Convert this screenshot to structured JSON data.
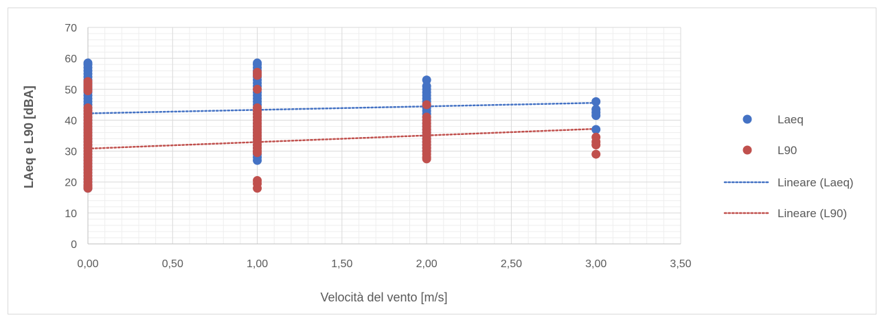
{
  "chart_data": {
    "type": "scatter",
    "title": "",
    "xlabel": "Velocità del vento [m/s]",
    "ylabel": "LAeq e L90 [dBA]",
    "xlim": [
      0,
      3.5
    ],
    "ylim": [
      0,
      70
    ],
    "x_ticks": [
      0,
      0.5,
      1.0,
      1.5,
      2.0,
      2.5,
      3.0,
      3.5
    ],
    "x_tick_labels": [
      "0,00",
      "0,50",
      "1,00",
      "1,50",
      "2,00",
      "2,50",
      "3,00",
      "3,50"
    ],
    "y_ticks": [
      0,
      10,
      20,
      30,
      40,
      50,
      60,
      70
    ],
    "y_tick_labels": [
      "0",
      "10",
      "20",
      "30",
      "40",
      "50",
      "60",
      "70"
    ],
    "grid": true,
    "minor_grid": true,
    "legend": "right",
    "series": [
      {
        "name": "Laeq",
        "kind": "scatter",
        "color": "#4472c4",
        "points": [
          [
            0,
            58.5
          ],
          [
            0,
            58
          ],
          [
            0,
            57
          ],
          [
            0,
            56
          ],
          [
            0,
            55
          ],
          [
            0,
            54
          ],
          [
            0,
            53
          ],
          [
            0,
            52
          ],
          [
            0,
            51
          ],
          [
            0,
            50
          ],
          [
            0,
            49
          ],
          [
            0,
            48
          ],
          [
            0,
            47
          ],
          [
            0,
            46
          ],
          [
            0,
            45
          ],
          [
            0,
            44
          ],
          [
            0,
            43
          ],
          [
            0,
            42
          ],
          [
            0,
            41
          ],
          [
            0,
            40
          ],
          [
            0,
            39
          ],
          [
            0,
            38
          ],
          [
            0,
            37
          ],
          [
            0,
            36
          ],
          [
            0,
            35
          ],
          [
            0,
            34
          ],
          [
            0,
            33
          ],
          [
            0,
            32
          ],
          [
            0,
            31
          ],
          [
            0,
            30
          ],
          [
            0,
            29
          ],
          [
            0,
            28
          ],
          [
            0,
            27
          ],
          [
            0,
            26
          ],
          [
            0,
            25
          ],
          [
            0,
            24
          ],
          [
            0,
            23
          ],
          [
            0,
            22
          ],
          [
            0,
            21
          ],
          [
            0,
            20
          ],
          [
            0,
            19
          ],
          [
            0,
            18
          ],
          [
            1,
            58.5
          ],
          [
            1,
            58
          ],
          [
            1,
            57
          ],
          [
            1,
            56
          ],
          [
            1,
            55
          ],
          [
            1,
            54
          ],
          [
            1,
            53
          ],
          [
            1,
            52
          ],
          [
            1,
            51
          ],
          [
            1,
            50
          ],
          [
            1,
            49
          ],
          [
            1,
            48
          ],
          [
            1,
            47
          ],
          [
            1,
            46
          ],
          [
            1,
            45
          ],
          [
            1,
            44
          ],
          [
            1,
            43
          ],
          [
            1,
            42
          ],
          [
            1,
            41
          ],
          [
            1,
            40
          ],
          [
            1,
            39
          ],
          [
            1,
            38
          ],
          [
            1,
            37
          ],
          [
            1,
            36
          ],
          [
            1,
            35
          ],
          [
            1,
            34
          ],
          [
            1,
            33
          ],
          [
            1,
            32
          ],
          [
            1,
            31
          ],
          [
            1,
            30
          ],
          [
            1,
            29
          ],
          [
            1,
            28
          ],
          [
            1,
            27
          ],
          [
            2,
            53
          ],
          [
            2,
            51
          ],
          [
            2,
            50
          ],
          [
            2,
            49
          ],
          [
            2,
            48
          ],
          [
            2,
            47
          ],
          [
            2,
            46
          ],
          [
            2,
            45
          ],
          [
            2,
            44
          ],
          [
            2,
            43
          ],
          [
            2,
            42
          ],
          [
            2,
            41
          ],
          [
            2,
            40
          ],
          [
            2,
            39
          ],
          [
            2,
            38
          ],
          [
            2,
            37
          ],
          [
            2,
            36
          ],
          [
            2,
            35
          ],
          [
            2,
            34
          ],
          [
            2,
            33
          ],
          [
            2,
            32
          ],
          [
            2,
            31
          ],
          [
            2,
            30
          ],
          [
            3,
            46
          ],
          [
            3,
            43.5
          ],
          [
            3,
            42.5
          ],
          [
            3,
            41.5
          ],
          [
            3,
            37
          ]
        ]
      },
      {
        "name": "L90",
        "kind": "scatter",
        "color": "#c0504d",
        "points": [
          [
            0,
            52.5
          ],
          [
            0,
            51.5
          ],
          [
            0,
            50.5
          ],
          [
            0,
            49.5
          ],
          [
            0,
            44
          ],
          [
            0,
            43
          ],
          [
            0,
            42
          ],
          [
            0,
            41
          ],
          [
            0,
            40
          ],
          [
            0,
            39
          ],
          [
            0,
            38
          ],
          [
            0,
            37
          ],
          [
            0,
            36
          ],
          [
            0,
            35
          ],
          [
            0,
            34
          ],
          [
            0,
            33
          ],
          [
            0,
            32
          ],
          [
            0,
            31
          ],
          [
            0,
            30
          ],
          [
            0,
            29
          ],
          [
            0,
            28
          ],
          [
            0,
            27
          ],
          [
            0,
            26
          ],
          [
            0,
            25
          ],
          [
            0,
            24
          ],
          [
            0,
            23
          ],
          [
            0,
            22
          ],
          [
            0,
            21
          ],
          [
            0,
            20
          ],
          [
            0,
            19
          ],
          [
            0,
            18.5
          ],
          [
            0,
            18
          ],
          [
            1,
            55.5
          ],
          [
            1,
            54.5
          ],
          [
            1,
            50
          ],
          [
            1,
            44
          ],
          [
            1,
            43
          ],
          [
            1,
            42
          ],
          [
            1,
            41
          ],
          [
            1,
            40
          ],
          [
            1,
            39
          ],
          [
            1,
            38
          ],
          [
            1,
            37
          ],
          [
            1,
            36
          ],
          [
            1,
            35
          ],
          [
            1,
            34
          ],
          [
            1,
            33
          ],
          [
            1,
            32
          ],
          [
            1,
            31
          ],
          [
            1,
            30
          ],
          [
            1,
            29.5
          ],
          [
            1,
            20.5
          ],
          [
            1,
            19.5
          ],
          [
            1,
            18
          ],
          [
            2,
            45
          ],
          [
            2,
            41
          ],
          [
            2,
            40
          ],
          [
            2,
            39
          ],
          [
            2,
            38
          ],
          [
            2,
            37
          ],
          [
            2,
            36
          ],
          [
            2,
            35
          ],
          [
            2,
            34
          ],
          [
            2,
            33
          ],
          [
            2,
            32
          ],
          [
            2,
            31
          ],
          [
            2,
            30
          ],
          [
            2,
            29
          ],
          [
            2,
            28
          ],
          [
            2,
            27.5
          ],
          [
            3,
            34.5
          ],
          [
            3,
            33
          ],
          [
            3,
            32
          ],
          [
            3,
            29
          ]
        ]
      },
      {
        "name": "Lineare (Laeq)",
        "kind": "trendline",
        "color": "#4472c4",
        "x": [
          0,
          3
        ],
        "y": [
          42.2,
          45.6
        ]
      },
      {
        "name": "Lineare (L90)",
        "kind": "trendline",
        "color": "#c0504d",
        "x": [
          0,
          3
        ],
        "y": [
          30.8,
          37.2
        ]
      }
    ]
  }
}
